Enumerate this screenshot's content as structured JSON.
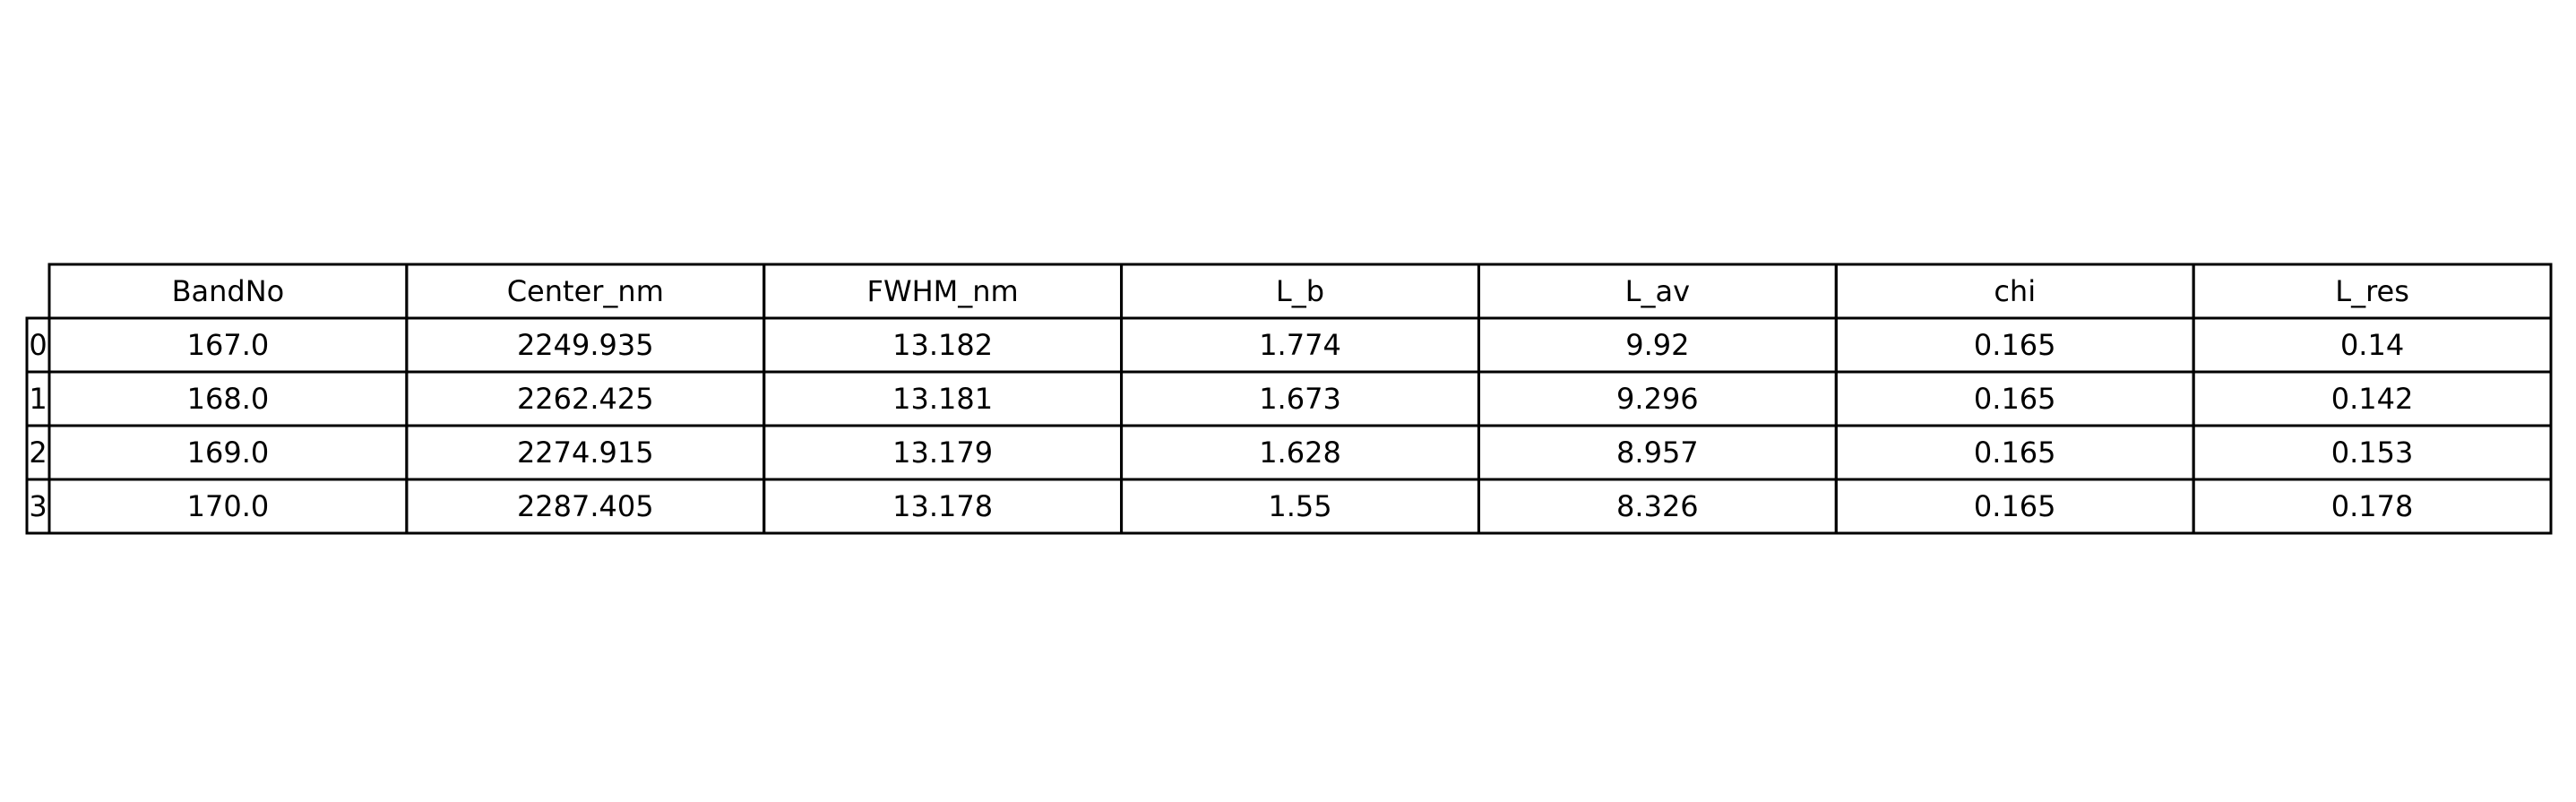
{
  "chart_data": {
    "type": "table",
    "columns": [
      "BandNo",
      "Center_nm",
      "FWHM_nm",
      "L_b",
      "L_av",
      "chi",
      "L_res"
    ],
    "row_labels": [
      "0",
      "1",
      "2",
      "3"
    ],
    "rows": [
      [
        "167.0",
        "2249.935",
        "13.182",
        "1.774",
        "9.92",
        "0.165",
        "0.14"
      ],
      [
        "168.0",
        "2262.425",
        "13.181",
        "1.673",
        "9.296",
        "0.165",
        "0.142"
      ],
      [
        "169.0",
        "2274.915",
        "13.179",
        "1.628",
        "8.957",
        "0.165",
        "0.153"
      ],
      [
        "170.0",
        "2287.405",
        "13.178",
        "1.55",
        "8.326",
        "0.165",
        "0.178"
      ]
    ],
    "title": "",
    "grid": true
  },
  "colors": {
    "line": "#000000",
    "text": "#000000",
    "background": "#ffffff"
  }
}
